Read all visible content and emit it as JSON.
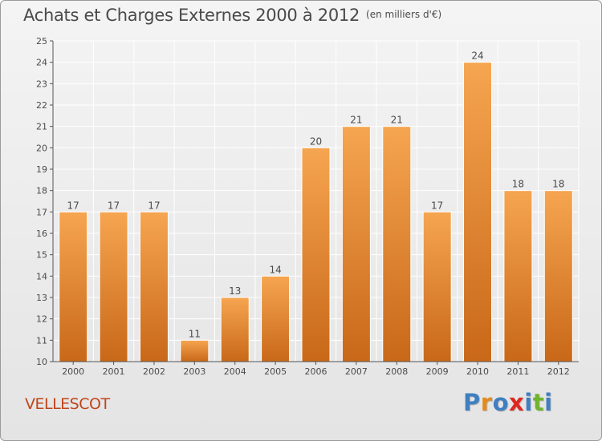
{
  "title": "Achats et Charges Externes 2000 à 2012",
  "unit": "(en milliers d'€)",
  "commune": "VELLESCOT",
  "brand": {
    "text": "Proxiti",
    "letter_colors": [
      "#3f7fc1",
      "#e58a1f",
      "#3f7fc1",
      "#e0261f",
      "#3f7fc1",
      "#6fb42c",
      "#3f7fc1"
    ]
  },
  "colors": {
    "bar_top": "#f6a550",
    "bar_bottom": "#c86818",
    "grid": "#ffffff",
    "text": "#4a4a4a"
  },
  "chart_data": {
    "type": "bar",
    "categories": [
      "2000",
      "2001",
      "2002",
      "2003",
      "2004",
      "2005",
      "2006",
      "2007",
      "2008",
      "2009",
      "2010",
      "2011",
      "2012"
    ],
    "values": [
      17,
      17,
      17,
      11,
      13,
      14,
      20,
      21,
      21,
      17,
      24,
      18,
      18
    ],
    "ylim": [
      10,
      25
    ],
    "yticks": [
      10,
      11,
      12,
      13,
      14,
      15,
      16,
      17,
      18,
      19,
      20,
      21,
      22,
      23,
      24,
      25
    ],
    "grid": true,
    "data_labels": true
  }
}
